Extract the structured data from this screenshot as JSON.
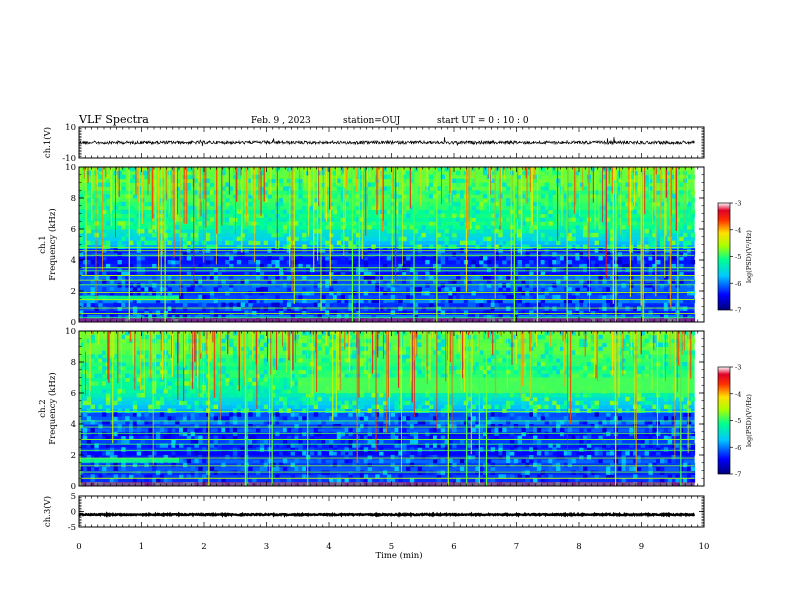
{
  "header": {
    "title": "VLF Spectra",
    "date": "Feb. 9 , 2023",
    "station": "station=OUJ",
    "start": "start UT =  0 : 10 : 0"
  },
  "chart_data": {
    "type": "heatmap",
    "xlabel": "Time (min)",
    "xlim": [
      0,
      10
    ],
    "x_ticks": [
      "0",
      "1",
      "2",
      "3",
      "4",
      "5",
      "6",
      "7",
      "8",
      "9",
      "10"
    ],
    "data_end_min": 9.85,
    "panels": [
      {
        "id": "ch1-waveform",
        "kind": "waveform",
        "ylabel": "ch.1(V)",
        "ylim": [
          -10,
          10
        ],
        "y_ticks": [
          "10",
          "-10"
        ],
        "trace_level": 0
      },
      {
        "id": "ch1-spectrogram",
        "kind": "spectrogram",
        "ylabel_lines": [
          "ch.1",
          "Frequency (kHz)"
        ],
        "ylim": [
          0,
          10
        ],
        "y_ticks": [
          "0",
          "2",
          "4",
          "6",
          "8",
          "10"
        ],
        "colorbar": {
          "label": "log(PSD)(V²/Hz)",
          "range": [
            -7,
            -3
          ],
          "ticks": [
            "-3",
            "-4",
            "-5",
            "-6",
            "-7"
          ]
        },
        "bands_khz": [
          0.3,
          0.55,
          0.9,
          1.45,
          1.9,
          2.4,
          2.7,
          3.0,
          3.3,
          3.5,
          4.3,
          4.6,
          4.8
        ],
        "features": "background ~-6.5 below 4.7 kHz, ~-5 to -4 above 6 kHz with many impulsive broadband spikes; enhanced band 1.4-1.7 kHz for t < 1.6 min"
      },
      {
        "id": "ch2-spectrogram",
        "kind": "spectrogram",
        "ylabel_lines": [
          "ch.2",
          "Frequency (kHz)"
        ],
        "ylim": [
          0,
          10
        ],
        "y_ticks": [
          "0",
          "2",
          "4",
          "6",
          "8",
          "10"
        ],
        "colorbar": {
          "label": "log(PSD)(V²/Hz)",
          "range": [
            -7,
            -3
          ],
          "ticks": [
            "-3",
            "-4",
            "-5",
            "-6",
            "-7"
          ]
        },
        "bands_khz": [
          0.5,
          0.9,
          1.3,
          1.8,
          2.3,
          2.7,
          3.0,
          3.4,
          3.8,
          4.2,
          4.8
        ],
        "features": "enhanced emission band 6-7 kHz for t > 3.5 min; enhanced band 1.5-1.8 kHz for t < 1.6 min; many impulsive broadband spikes"
      },
      {
        "id": "ch3-waveform",
        "kind": "waveform",
        "ylabel": "ch.3(V)",
        "ylim": [
          -5,
          5
        ],
        "y_ticks": [
          "5",
          "0",
          "-5"
        ],
        "trace_level": -1
      }
    ]
  }
}
